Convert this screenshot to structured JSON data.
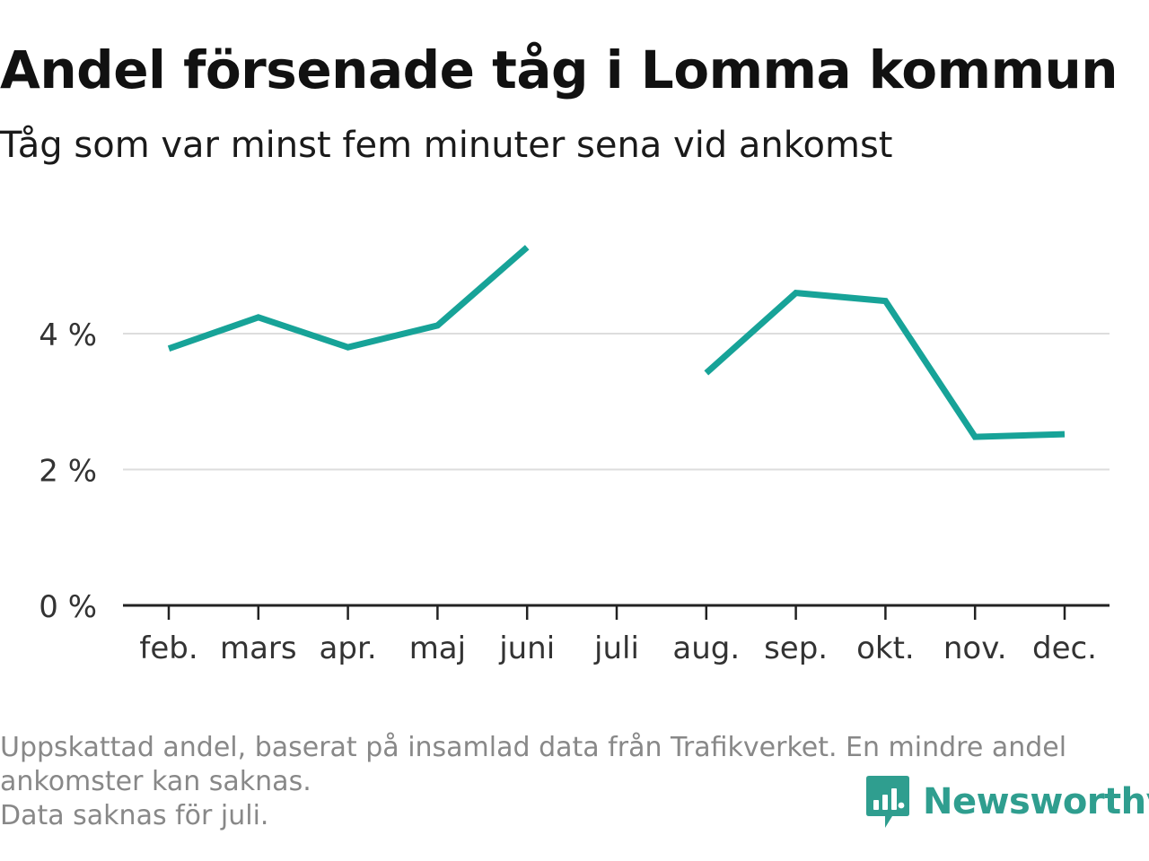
{
  "chart_data": {
    "type": "line",
    "title": "Andel försenade tåg i Lomma kommun",
    "subtitle": "Tåg som var minst fem minuter sena vid ankomst",
    "categories": [
      "feb.",
      "mars",
      "apr.",
      "maj",
      "juni",
      "juli",
      "aug.",
      "sep.",
      "okt.",
      "nov.",
      "dec."
    ],
    "series": [
      {
        "values": [
          3.78,
          4.24,
          3.8,
          4.12,
          5.27,
          null,
          3.42,
          4.6,
          4.48,
          2.48,
          2.52
        ],
        "color": "#17a398"
      }
    ],
    "y_ticks": [
      0,
      2,
      4
    ],
    "y_tick_labels": [
      "0 %",
      "2 %",
      "4 %"
    ],
    "ylim": [
      0,
      5.5
    ],
    "grid": true,
    "xlabel": "",
    "ylabel": ""
  },
  "footnote": {
    "line1": "Uppskattad andel, baserat på insamlad data från Trafikverket. En mindre andel",
    "line2": "ankomster kan saknas.",
    "line3": "Data saknas för juli."
  },
  "brand": {
    "name": "Newsworthy",
    "icon": "bar-chart-speech-bubble-icon",
    "color": "#2f9e8f"
  }
}
